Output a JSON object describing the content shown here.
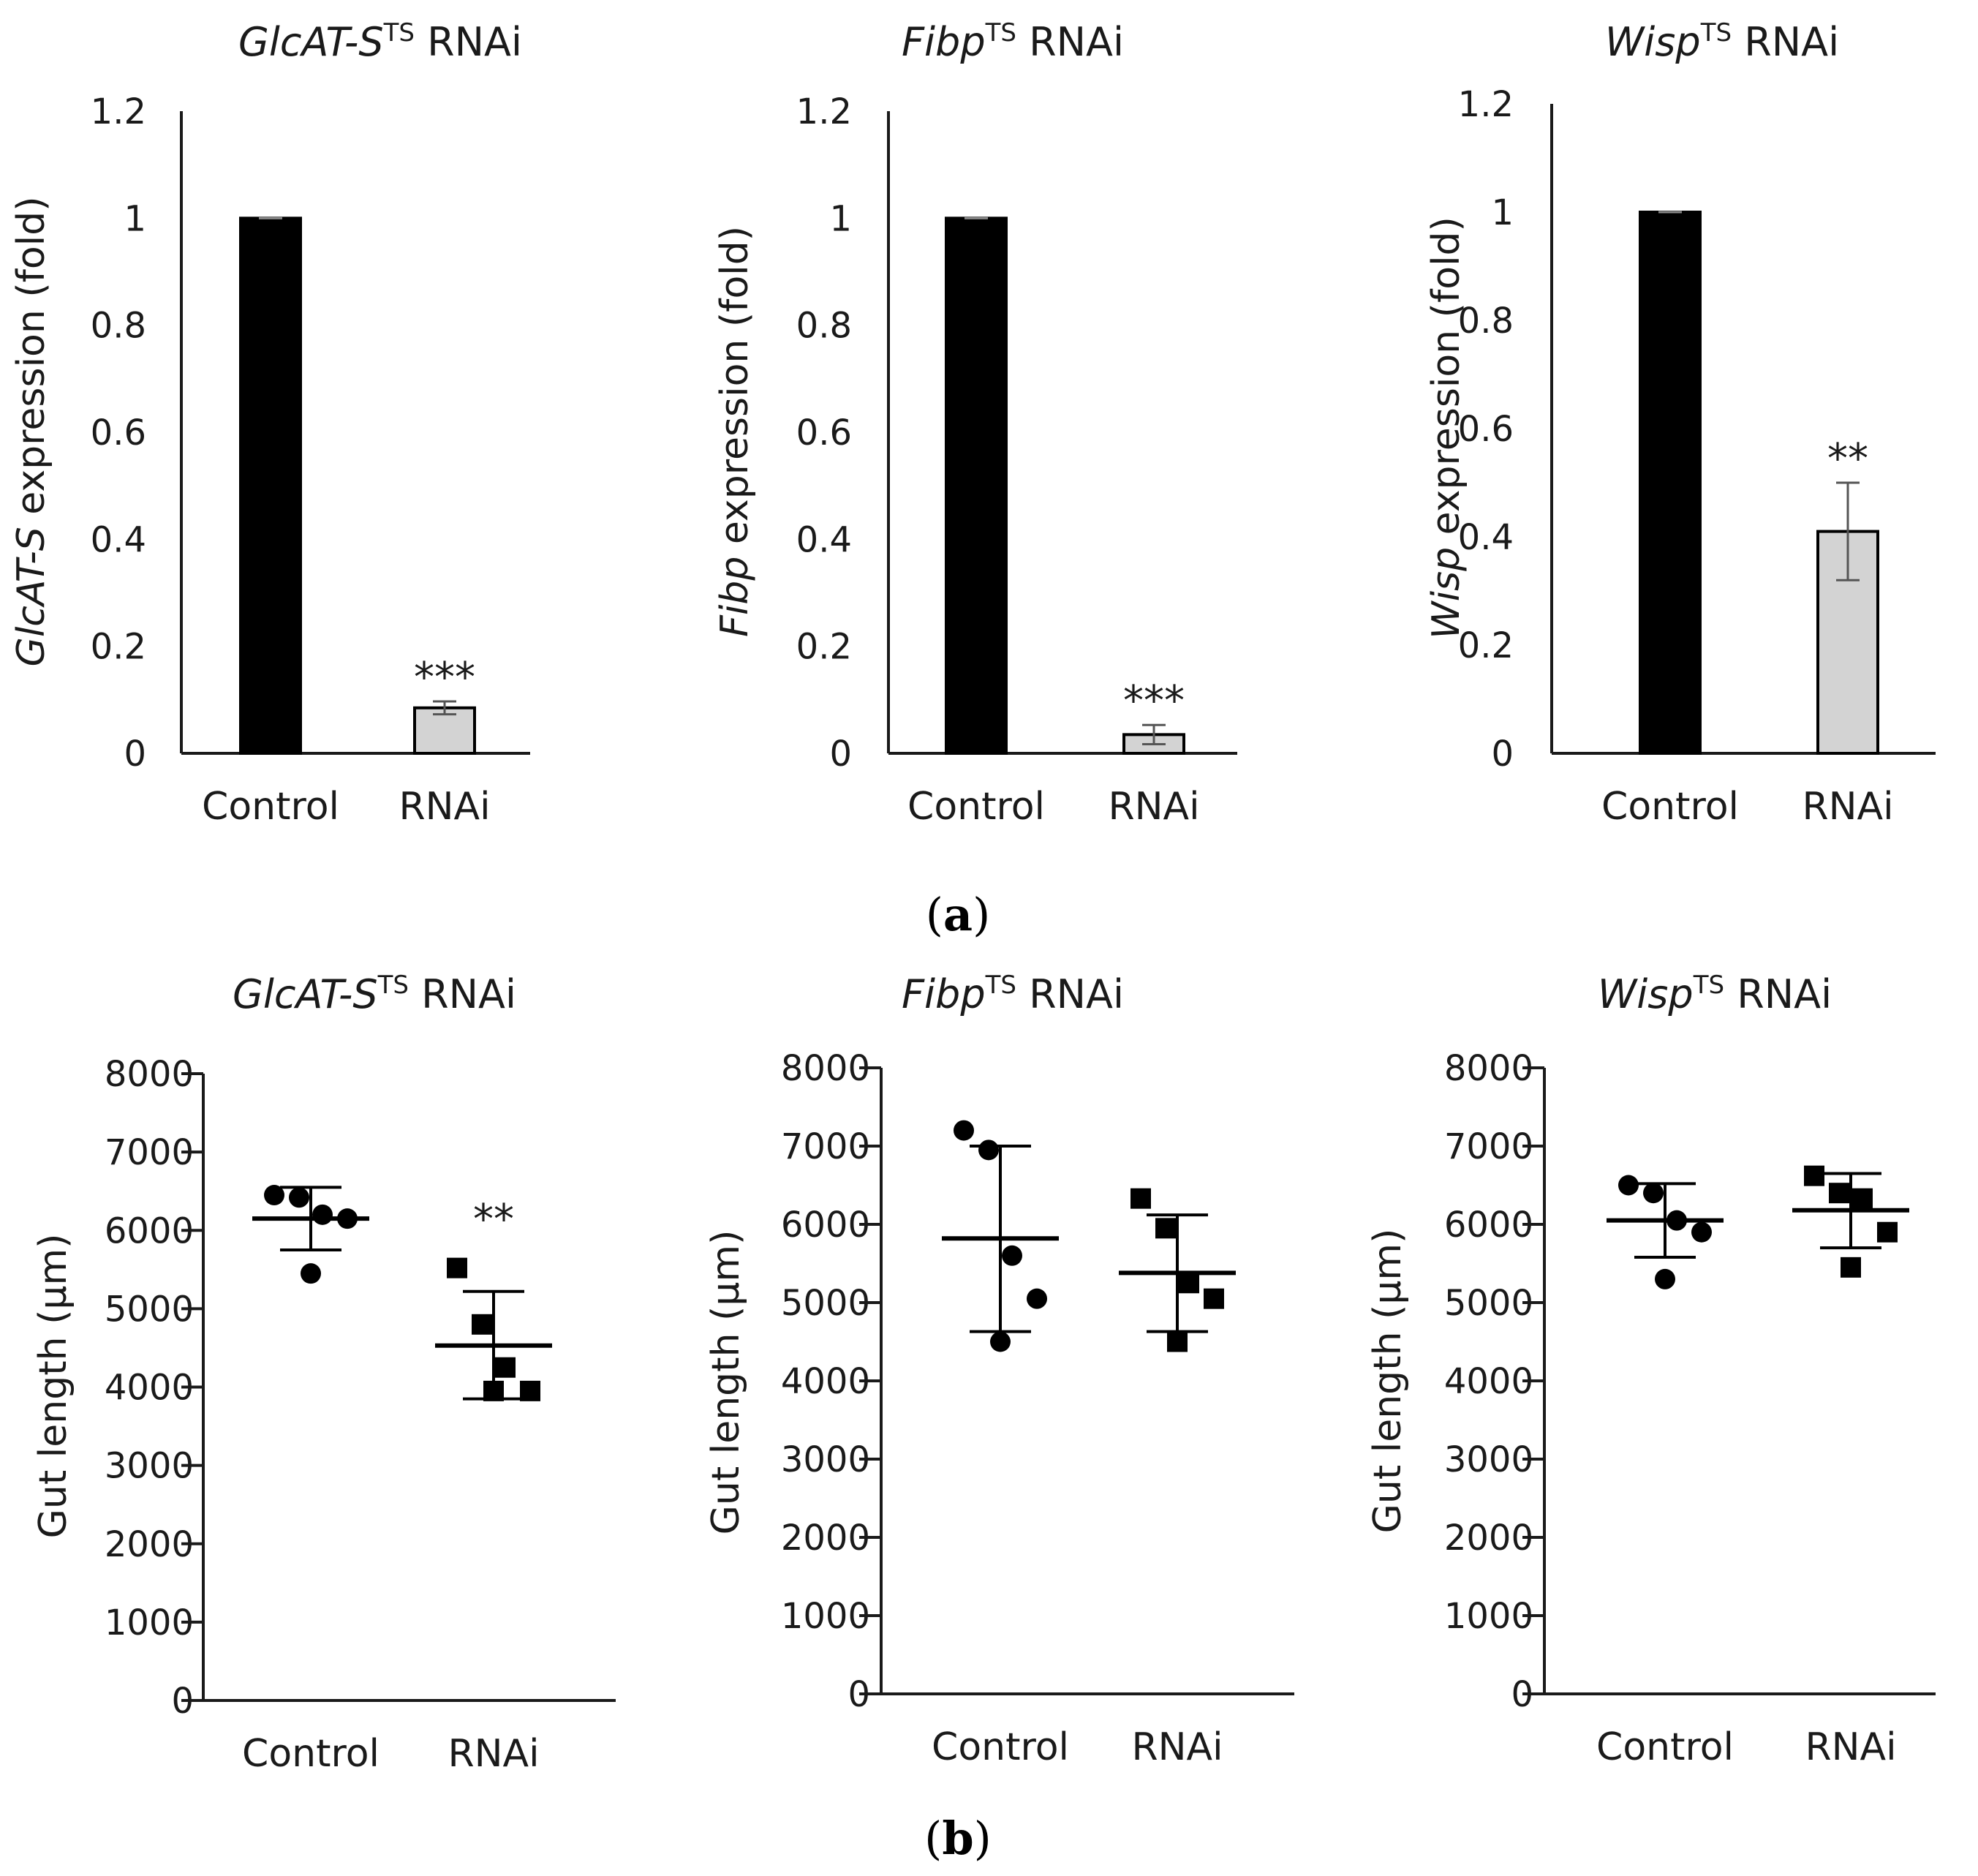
{
  "panel_labels": {
    "a": {
      "open": "(",
      "letter": "a",
      "close": ")"
    },
    "b": {
      "open": "(",
      "letter": "b",
      "close": ")"
    }
  },
  "colors": {
    "control_bar": "#000000",
    "rnai_bar": "#d3d3d3",
    "axis": "#1a1a1a",
    "marker": "#000000"
  },
  "chart_data": [
    {
      "type": "bar",
      "title": {
        "gene": "GlcAT-S",
        "superscript": "TS",
        "suffix": " RNAi"
      },
      "ylabel": {
        "gene": "GlcAT-S",
        "suffix": " expression (fold)"
      },
      "categories": [
        "Control",
        "RNAi"
      ],
      "values": [
        1.0,
        0.085
      ],
      "errors": [
        0.0,
        0.012
      ],
      "significance": [
        "",
        "***"
      ],
      "ylim": [
        0,
        1.2
      ],
      "yticks": [
        "0",
        "0.2",
        "0.4",
        "0.6",
        "0.8",
        "1",
        "1.2"
      ]
    },
    {
      "type": "bar",
      "title": {
        "gene": "Fibp",
        "superscript": "TS",
        "suffix": " RNAi"
      },
      "ylabel": {
        "gene": "Fibp",
        "suffix": " expression (fold)"
      },
      "categories": [
        "Control",
        "RNAi"
      ],
      "values": [
        1.0,
        0.035
      ],
      "errors": [
        0.0,
        0.018
      ],
      "significance": [
        "",
        "***"
      ],
      "ylim": [
        0,
        1.2
      ],
      "yticks": [
        "0",
        "0.2",
        "0.4",
        "0.6",
        "0.8",
        "1",
        "1.2"
      ]
    },
    {
      "type": "bar",
      "title": {
        "gene": "Wisp",
        "superscript": "TS",
        "suffix": " RNAi"
      },
      "ylabel": {
        "gene": "Wisp",
        "suffix": " expression (fold)"
      },
      "categories": [
        "Control",
        "RNAi"
      ],
      "values": [
        1.0,
        0.41
      ],
      "errors": [
        0.0,
        0.09
      ],
      "significance": [
        "",
        "**"
      ],
      "ylim": [
        0,
        1.2
      ],
      "yticks": [
        "0",
        "0.2",
        "0.4",
        "0.6",
        "0.8",
        "1",
        "1.2"
      ]
    },
    {
      "type": "scatter",
      "title": {
        "gene": "GlcAT-S",
        "superscript": "TS",
        "suffix": " RNAi"
      },
      "ylabel": {
        "gene": "",
        "suffix": "Gut length (μm)"
      },
      "categories": [
        "Control",
        "RNAi"
      ],
      "series": [
        {
          "marker": "circle",
          "points": [
            6450,
            6420,
            6200,
            6150,
            5450
          ],
          "mean": 6150,
          "sd_low": 5750,
          "sd_high": 6550
        },
        {
          "marker": "square",
          "points": [
            5520,
            4800,
            4250,
            3950,
            3950
          ],
          "mean": 4530,
          "sd_low": 3850,
          "sd_high": 5220
        }
      ],
      "significance": [
        "",
        "**"
      ],
      "ylim": [
        0,
        8000
      ],
      "yticks": [
        "0",
        "1000",
        "2000",
        "3000",
        "4000",
        "5000",
        "6000",
        "7000",
        "8000"
      ]
    },
    {
      "type": "scatter",
      "title": {
        "gene": "Fibp",
        "superscript": "TS",
        "suffix": " RNAi"
      },
      "ylabel": {
        "gene": "",
        "suffix": "Gut length (μm)"
      },
      "categories": [
        "Control",
        "RNAi"
      ],
      "series": [
        {
          "marker": "circle",
          "points": [
            7200,
            6950,
            5600,
            5050,
            4500
          ],
          "mean": 5820,
          "sd_low": 4630,
          "sd_high": 7000
        },
        {
          "marker": "square",
          "points": [
            6330,
            5950,
            5250,
            5050,
            4500
          ],
          "mean": 5380,
          "sd_low": 4630,
          "sd_high": 6120
        }
      ],
      "significance": [
        "",
        ""
      ],
      "ylim": [
        0,
        8000
      ],
      "yticks": [
        "0",
        "1000",
        "2000",
        "3000",
        "4000",
        "5000",
        "6000",
        "7000",
        "8000"
      ]
    },
    {
      "type": "scatter",
      "title": {
        "gene": "Wisp",
        "superscript": "TS",
        "suffix": " RNAi"
      },
      "ylabel": {
        "gene": "",
        "suffix": "Gut length (μm)"
      },
      "categories": [
        "Control",
        "RNAi"
      ],
      "series": [
        {
          "marker": "circle",
          "points": [
            6500,
            6400,
            6050,
            5900,
            5300
          ],
          "mean": 6050,
          "sd_low": 5580,
          "sd_high": 6520
        },
        {
          "marker": "square",
          "points": [
            6620,
            6400,
            6330,
            5900,
            5450
          ],
          "mean": 6180,
          "sd_low": 5700,
          "sd_high": 6650
        }
      ],
      "significance": [
        "",
        ""
      ],
      "ylim": [
        0,
        8000
      ],
      "yticks": [
        "0",
        "1000",
        "2000",
        "3000",
        "4000",
        "5000",
        "6000",
        "7000",
        "8000"
      ]
    }
  ]
}
